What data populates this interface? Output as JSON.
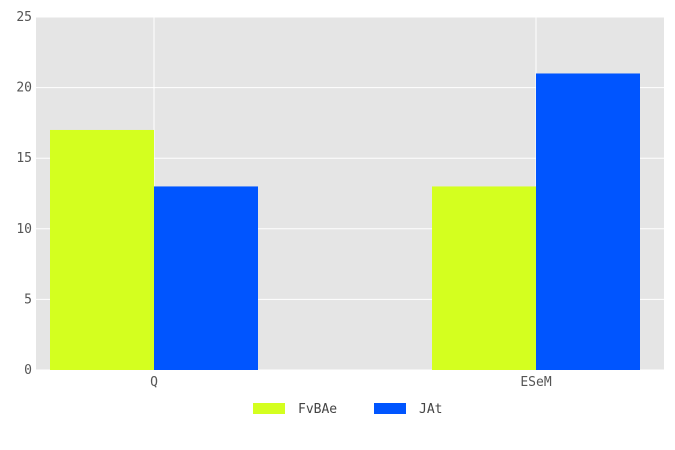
{
  "chart_data": {
    "type": "bar",
    "title": "",
    "xlabel": "",
    "ylabel": "",
    "categories": [
      "Q",
      "ESeM"
    ],
    "series": [
      {
        "name": "FvBAe",
        "values": [
          17,
          13
        ],
        "color": "#d4ff1f"
      },
      {
        "name": "JAt",
        "values": [
          13,
          21
        ],
        "color": "#0055ff"
      }
    ],
    "ylim": [
      0,
      25
    ],
    "yticks": [
      0,
      5,
      10,
      15,
      20,
      25
    ],
    "grid": true,
    "background_color": "#e5e5e5",
    "grid_color": "#ffffff",
    "legend_position": "bottom-center"
  }
}
